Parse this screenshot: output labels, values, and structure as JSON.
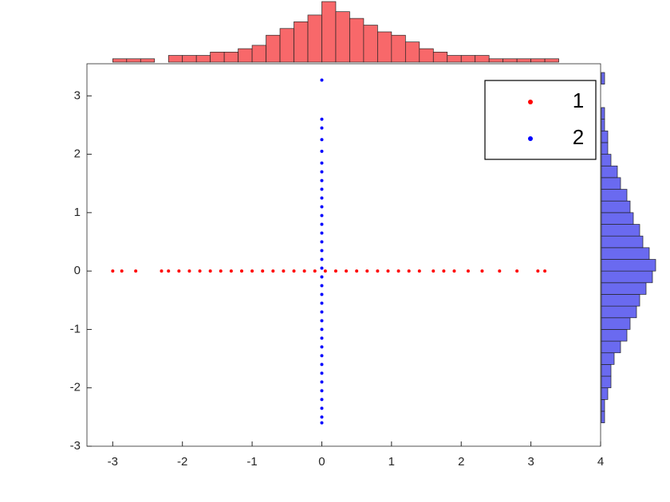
{
  "chart_data": [
    {
      "type": "scatter",
      "xlim": [
        -3.37,
        4
      ],
      "ylim": [
        -3,
        3.55
      ],
      "xticks": [
        -3,
        -2,
        -1,
        0,
        1,
        2,
        3,
        4
      ],
      "yticks": [
        -3,
        -2,
        -1,
        0,
        1,
        2,
        3
      ],
      "series": [
        {
          "name": "1",
          "color": "#ff0000",
          "x": [
            -3,
            -2.87,
            -2.67,
            -2.3,
            -2.2,
            -2.05,
            -1.9,
            -1.75,
            -1.6,
            -1.45,
            -1.3,
            -1.15,
            -1.0,
            -0.85,
            -0.7,
            -0.55,
            -0.4,
            -0.25,
            -0.1,
            0.05,
            0.2,
            0.35,
            0.5,
            0.65,
            0.8,
            0.95,
            1.1,
            1.25,
            1.4,
            1.6,
            1.75,
            1.9,
            2.1,
            2.3,
            2.55,
            2.8,
            3.1,
            3.2
          ],
          "y": [
            0,
            0,
            0,
            0,
            0,
            0,
            0,
            0,
            0,
            0,
            0,
            0,
            0,
            0,
            0,
            0,
            0,
            0,
            0,
            0,
            0,
            0,
            0,
            0,
            0,
            0,
            0,
            0,
            0,
            0,
            0,
            0,
            0,
            0,
            0,
            0,
            0,
            0
          ]
        },
        {
          "name": "2",
          "color": "#0000ff",
          "x": [
            0,
            0,
            0,
            0,
            0,
            0,
            0,
            0,
            0,
            0,
            0,
            0,
            0,
            0,
            0,
            0,
            0,
            0,
            0,
            0,
            0,
            0,
            0,
            0,
            0,
            0,
            0,
            0,
            0,
            0,
            0,
            0,
            0,
            0,
            0,
            0
          ],
          "y": [
            -2.6,
            -2.5,
            -2.35,
            -2.2,
            -2.05,
            -1.9,
            -1.75,
            -1.6,
            -1.45,
            -1.3,
            -1.15,
            -1.0,
            -0.85,
            -0.7,
            -0.55,
            -0.4,
            -0.25,
            -0.1,
            0.05,
            0.2,
            0.35,
            0.5,
            0.65,
            0.8,
            0.95,
            1.1,
            1.25,
            1.4,
            1.55,
            1.7,
            1.85,
            2.05,
            2.25,
            2.45,
            2.6,
            3.27
          ]
        }
      ],
      "legend": "upper right"
    },
    {
      "type": "histogram",
      "orientation": "vertical",
      "color": "#f8686a",
      "bins": [
        -3,
        -2.8,
        -2.6,
        -2.4,
        -2.2,
        -2.0,
        -1.8,
        -1.6,
        -1.4,
        -1.2,
        -1.0,
        -0.8,
        -0.6,
        -0.4,
        -0.2,
        0,
        0.2,
        0.4,
        0.6,
        0.8,
        1.0,
        1.2,
        1.4,
        1.6,
        1.8,
        2.0,
        2.2,
        2.4,
        2.6,
        2.8,
        3.0,
        3.2,
        3.4
      ],
      "values": [
        1,
        1,
        1,
        0,
        2,
        2,
        2,
        3,
        3,
        4,
        5,
        8,
        10,
        12,
        14,
        18,
        15,
        13,
        11,
        9,
        8,
        6,
        4,
        3,
        2,
        2,
        2,
        1,
        1,
        1,
        1,
        1
      ]
    },
    {
      "type": "histogram",
      "orientation": "horizontal",
      "color": "#6a6af0",
      "bins": [
        -2.6,
        -2.4,
        -2.2,
        -2.0,
        -1.8,
        -1.6,
        -1.4,
        -1.2,
        -1.0,
        -0.8,
        -0.6,
        -0.4,
        -0.2,
        0,
        0.2,
        0.4,
        0.6,
        0.8,
        1.0,
        1.2,
        1.4,
        1.6,
        1.8,
        2.0,
        2.2,
        2.4,
        2.6,
        2.8,
        3.0,
        3.2,
        3.4
      ],
      "values": [
        1,
        1,
        2,
        3,
        3,
        4,
        6,
        8,
        9,
        11,
        12,
        14,
        16,
        17,
        15,
        13,
        12,
        10,
        9,
        8,
        6,
        5,
        3,
        2,
        2,
        1,
        1,
        0,
        0,
        1
      ]
    }
  ]
}
